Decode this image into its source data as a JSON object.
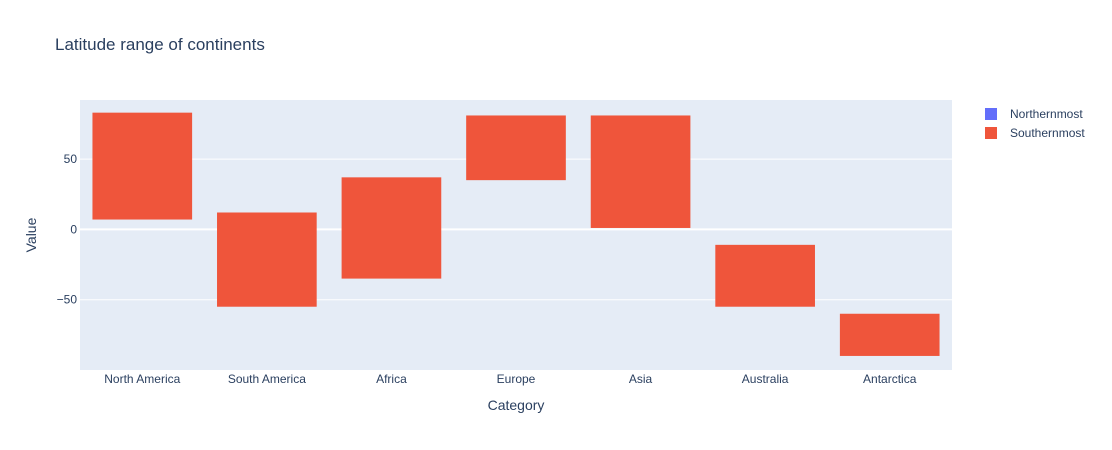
{
  "chart_data": {
    "type": "bar",
    "title": "Latitude range of continents",
    "xlabel": "Category",
    "ylabel": "Value",
    "categories": [
      "North America",
      "South America",
      "Africa",
      "Europe",
      "Asia",
      "Australia",
      "Antarctica"
    ],
    "series": [
      {
        "name": "Northernmost",
        "color": "#636efa",
        "values": [
          83,
          12,
          37,
          81,
          81,
          -11,
          -60
        ]
      },
      {
        "name": "Southernmost",
        "color": "#ef553b",
        "values": [
          7,
          -55,
          -35,
          35,
          1,
          -55,
          -90
        ]
      }
    ],
    "ylim": [
      -100,
      92
    ],
    "yticks": [
      -50,
      0,
      50
    ],
    "ytick_labels": [
      "−50",
      "0",
      "50"
    ],
    "grid": true,
    "legend_position": "top-right",
    "plot_bg": "#e5ecf6"
  }
}
